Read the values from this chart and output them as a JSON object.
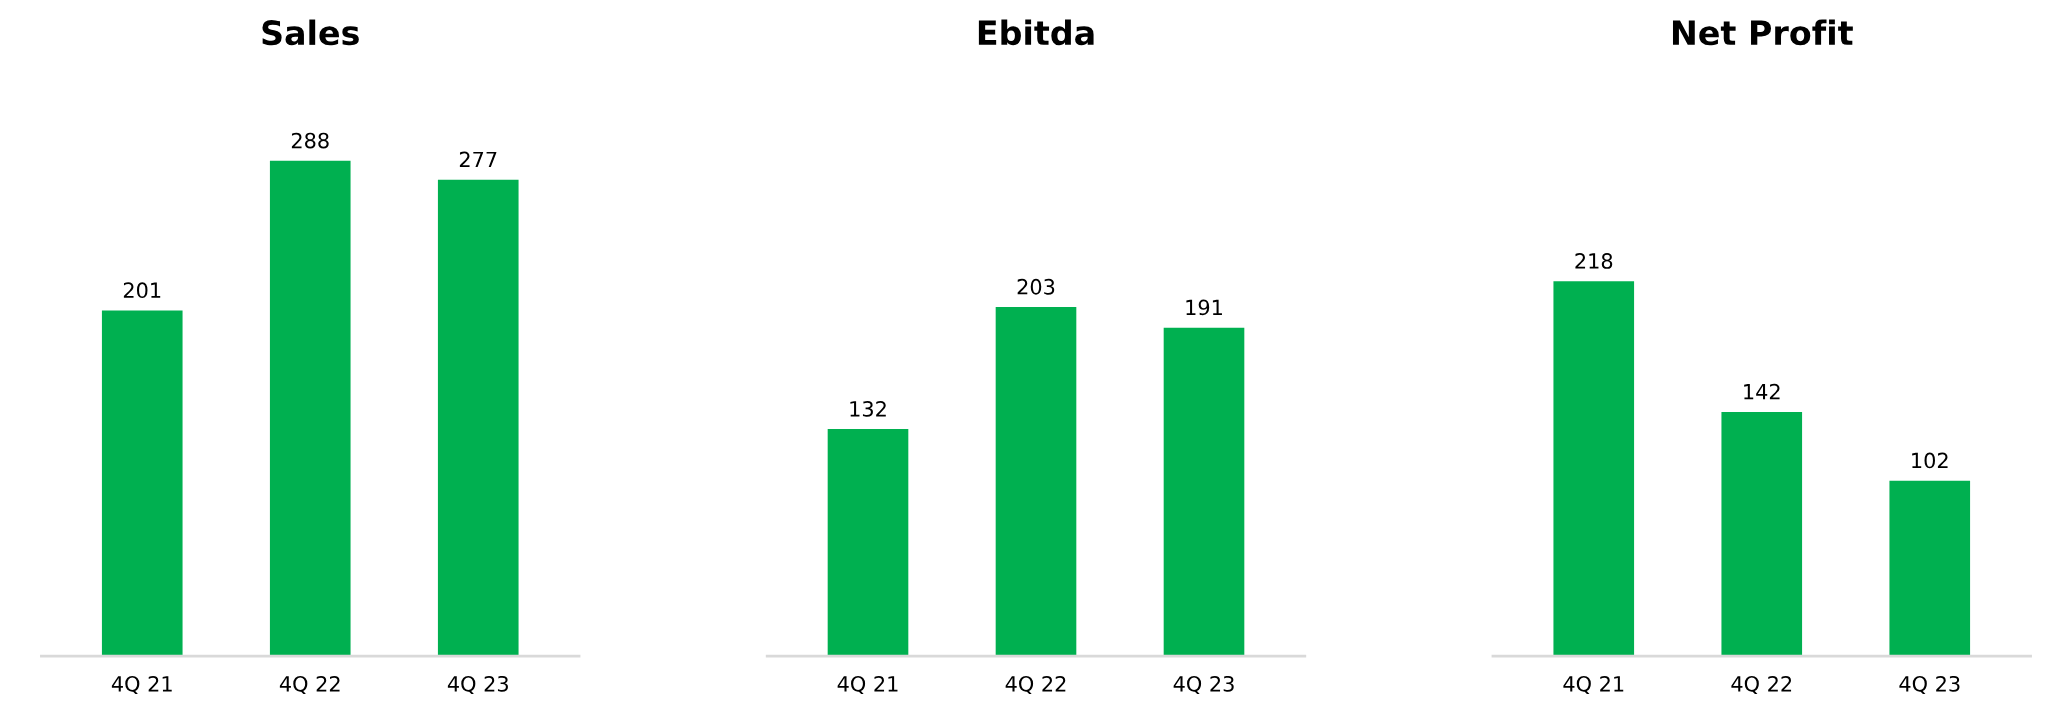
{
  "chart_data": [
    {
      "type": "bar",
      "title": "Sales",
      "categories": [
        "4Q 21",
        "4Q 22",
        "4Q 23"
      ],
      "values": [
        201,
        288,
        277
      ],
      "color": "#00b050",
      "data_labels": true,
      "tick_labels": "x",
      "grid": false
    },
    {
      "type": "bar",
      "title": "Ebitda",
      "categories": [
        "4Q 21",
        "4Q 22",
        "4Q 23"
      ],
      "values": [
        132,
        203,
        191
      ],
      "color": "#00b050",
      "data_labels": true,
      "tick_labels": "x",
      "grid": false
    },
    {
      "type": "bar",
      "title": "Net Profit",
      "categories": [
        "4Q 21",
        "4Q 22",
        "4Q 23"
      ],
      "values": [
        218,
        142,
        102
      ],
      "color": "#00b050",
      "data_labels": true,
      "tick_labels": "x",
      "grid": false
    }
  ]
}
